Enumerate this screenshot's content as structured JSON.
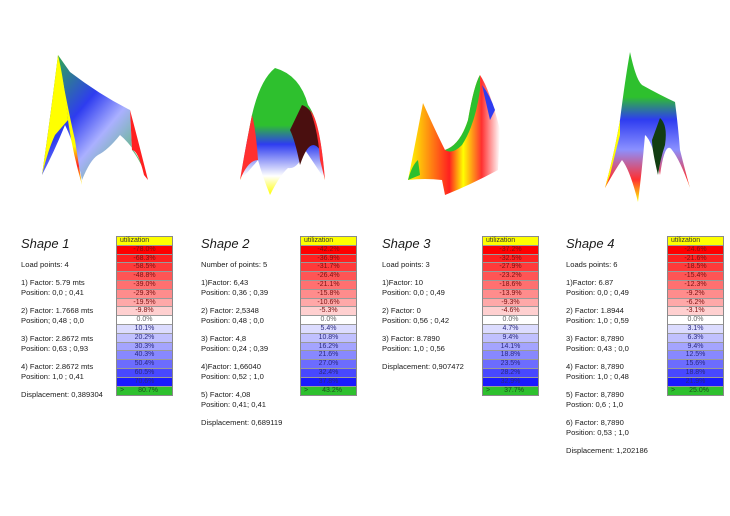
{
  "shapes": [
    {
      "title": "Shape 1",
      "count_label": "Load points: 4",
      "points": [
        {
          "factor": "1) Factor: 5.79 mts",
          "position": "Position: 0,0 ; 0,41"
        },
        {
          "factor": "2) Factor: 1.7668 mts",
          "position": "Position; 0,48 ; 0,0"
        },
        {
          "factor": "3) Factor: 2.8672 mts",
          "position": "Position: 0,63 ; 0,93"
        },
        {
          "factor": "4) Factor: 2.8672 mts",
          "position": "Position: 1,0 ; 0,41"
        }
      ],
      "displacement": "Displacement: 0,389304",
      "legend": {
        "header": "utilization",
        "values": [
          "-78.0%",
          "-68.3%",
          "-58.5%",
          "-48.8%",
          "-39.0%",
          "-29.3%",
          "-19.5%",
          "-9.8%",
          "0.0%",
          "10.1%",
          "20.2%",
          "30.3%",
          "40.3%",
          "50.4%",
          "60.5%",
          "70.6%"
        ],
        "max_prefix": ">",
        "max_value": "80.7%"
      }
    },
    {
      "title": "Shape 2",
      "count_label": "Number of points: 5",
      "points": [
        {
          "factor": "1)Factor: 6,43",
          "position": "Position: 0,36 ; 0,39"
        },
        {
          "factor": "2) Factor: 2,5348",
          "position": "Position: 0,48 ; 0,0"
        },
        {
          "factor": "3) Factor: 4,8",
          "position": "Position: 0,24 ; 0,39"
        },
        {
          "factor": "4)Factor: 1,66040",
          "position": "Position: 0,52 ; 1,0"
        },
        {
          "factor": "5) Factor: 4,08",
          "position": "Position: 0,41; 0,41"
        }
      ],
      "displacement": "Displacement: 0,689119",
      "legend": {
        "header": "utilization",
        "values": [
          "-42.2%",
          "-36.9%",
          "-31.7%",
          "-26.4%",
          "-21.1%",
          "-15.8%",
          "-10.6%",
          "-5.3%",
          "0.0%",
          "5.4%",
          "10.8%",
          "16.2%",
          "21.6%",
          "27.0%",
          "32.4%",
          "37.8%"
        ],
        "max_prefix": ">",
        "max_value": "43.2%"
      }
    },
    {
      "title": "Shape 3",
      "count_label": "Load points: 3",
      "points": [
        {
          "factor": "1)Factor: 10",
          "position": "Position: 0,0 ; 0,49"
        },
        {
          "factor": "2) Factor: 0",
          "position": "Position: 0,56 ; 0,42"
        },
        {
          "factor": "3) Factor: 8.7890",
          "position": "Position: 1,0 ; 0,56"
        }
      ],
      "displacement": "Displacement: 0,907472",
      "legend": {
        "header": "utilization",
        "values": [
          "-37.2%",
          "-32.5%",
          "-27.9%",
          "-23.2%",
          "-18.6%",
          "-13.9%",
          "-9.3%",
          "-4.6%",
          "0.0%",
          "4.7%",
          "9.4%",
          "14.1%",
          "18.8%",
          "23.5%",
          "28.2%",
          "32.9%"
        ],
        "max_prefix": ">",
        "max_value": "37.7%"
      }
    },
    {
      "title": "Shape 4",
      "count_label": "Loads points: 6",
      "points": [
        {
          "factor": "1)Factor: 6.87",
          "position": "Position: 0,0 ; 0,49"
        },
        {
          "factor": "2) Factor: 1.8944",
          "position": "Position: 1,0 ; 0,59"
        },
        {
          "factor": "3) Factor: 8,7890",
          "position": "Position: 0,43 ; 0,0"
        },
        {
          "factor": "4) Factor: 8,7890",
          "position": "Position: 1,0 ; 0,48"
        },
        {
          "factor": "5) Factor: 8,7890",
          "position": "Postion: 0,6 ; 1,0"
        },
        {
          "factor": "6) Factor: 8,7890",
          "position": "Position: 0,53 ; 1,0"
        }
      ],
      "displacement": "Displacement: 1,202186",
      "legend": {
        "header": "utilization",
        "values": [
          "-24.6%",
          "-21.6%",
          "-18.5%",
          "-15.4%",
          "-12.3%",
          "-9.2%",
          "-6.2%",
          "-3.1%",
          "0.0%",
          "3.1%",
          "6.3%",
          "9.4%",
          "12.5%",
          "15.6%",
          "18.8%",
          "21.9%"
        ],
        "max_prefix": ">",
        "max_value": "25.0%"
      }
    }
  ],
  "legend_colors": [
    "#ff0000",
    "#ff2020",
    "#ff3a3a",
    "#ff5555",
    "#ff7070",
    "#ff8c8c",
    "#ffa8a8",
    "#ffd0d0",
    "#ffffff",
    "#dcdcff",
    "#c0c0ff",
    "#a4a4ff",
    "#8888ff",
    "#6c6cff",
    "#4848ff",
    "#1a1aff"
  ],
  "colors": {
    "header": "#ffff00",
    "max": "#2ec02e"
  }
}
